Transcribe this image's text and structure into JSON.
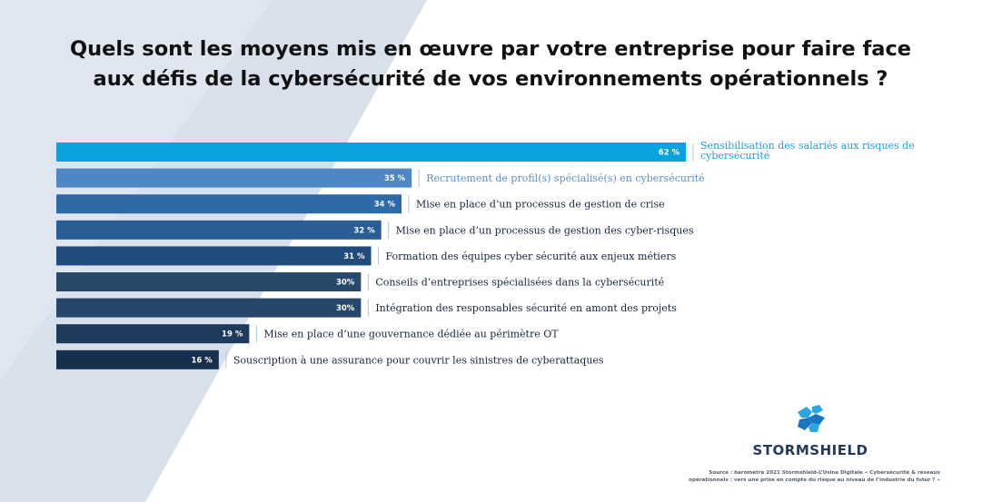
{
  "title": {
    "line1": "Quels sont les moyens mis en œuvre par votre entreprise pour faire face",
    "line2": "aux défis de la cybersécurité de vos environnements opérationnels ?"
  },
  "chart_data": {
    "type": "bar",
    "orientation": "horizontal",
    "categories": [
      "Sensibilisation des salariés aux risques de cybersécurité",
      "Recrutement de profil(s) spécialisé(s) en cybersécurité",
      "Mise en place d’un processus de gestion de crise",
      "Mise en place d’un processus de gestion des cyber-risques",
      "Formation des équipes cyber sécurité aux enjeux métiers",
      "Conseils d’entreprises spécialisées dans la cybersécurité",
      "Intégration des responsables sécurité en amont des projets",
      "Mise en place d’une gouvernance dédiée au périmètre OT",
      "Souscription à une assurance pour couvrir les sinistres de cyberattaques"
    ],
    "values": [
      62,
      35,
      34,
      32,
      31,
      30,
      30,
      19,
      16
    ],
    "value_labels": [
      "62 %",
      "35 %",
      "34 %",
      "32 %",
      "31 %",
      "30%",
      "30%",
      "19 %",
      "16 %"
    ],
    "label_lines": [
      [
        "Sensibilisation des salariés aux risques de",
        "cybersécurité"
      ],
      [
        "Recrutement de profil(s) spécialisé(s) en cybersécurité"
      ],
      [
        "Mise en place d’un processus de gestion de crise"
      ],
      [
        "Mise en place d’un processus de gestion des cyber-risques"
      ],
      [
        "Formation des équipes cyber sécurité aux enjeux métiers"
      ],
      [
        "Conseils d’entreprises spécialisées dans la cybersécurité"
      ],
      [
        "Intégration des responsables sécurité en amont des projets"
      ],
      [
        "Mise en place d’une gouvernance dédiée au périmètre OT"
      ],
      [
        "Souscription à une assurance pour couvrir les sinistres de cyberattaques"
      ]
    ],
    "bar_colors": [
      "#0aa3dd",
      "#4f87c4",
      "#2e6aa8",
      "#2a5d94",
      "#1f4c7c",
      "#27496a",
      "#27476a",
      "#1e3a5c",
      "#172f4d"
    ],
    "xlim": [
      0,
      62
    ],
    "grid": false
  },
  "brand": {
    "name": "STORMSHIELD",
    "icon": "stormshield-logo-icon",
    "logo_colors": [
      "#2aa7e0",
      "#1976c2"
    ]
  },
  "source": {
    "line1": "Source : baromètre 2021 Stormshield-L’Usine Digitale « Cybersécurité & réseaux",
    "line2": "opérationnels : vers une prise en compte du risque au niveau de l’industrie du futur ? »"
  },
  "colors": {
    "background_left": "#dfe6f0",
    "background_wedge": "#c8d4e4",
    "highlight_text": "#1d9fd8"
  }
}
